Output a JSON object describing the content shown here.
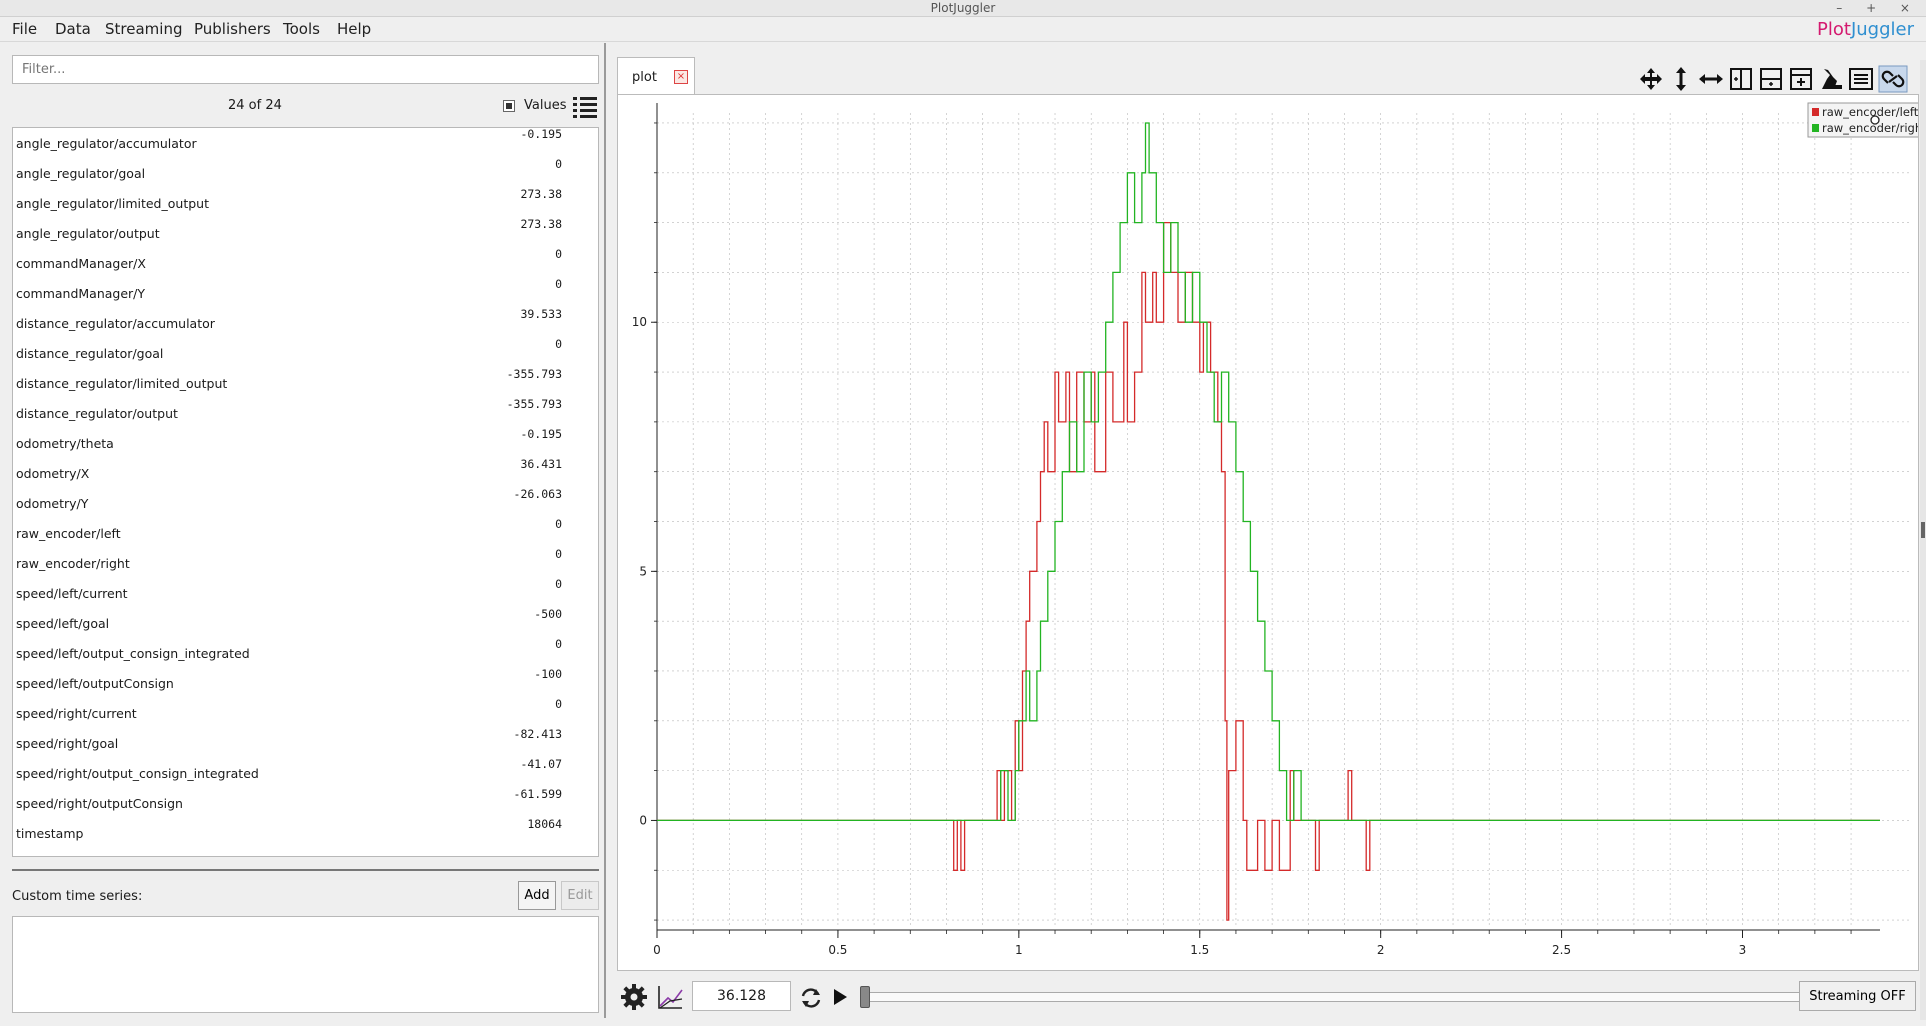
{
  "window": {
    "title": "PlotJuggler",
    "controls": "– + ×"
  },
  "menu": [
    "File",
    "Data",
    "Streaming",
    "Publishers",
    "Tools",
    "Help"
  ],
  "logo": {
    "part1": "Plot",
    "part2": "Juggler"
  },
  "left": {
    "filter_placeholder": "Filter...",
    "count": "24 of 24",
    "values_label": "Values",
    "values_checked": true,
    "items": [
      {
        "name": "angle_regulator/accumulator",
        "value": "-0.195"
      },
      {
        "name": "angle_regulator/goal",
        "value": "0"
      },
      {
        "name": "angle_regulator/limited_output",
        "value": "273.38"
      },
      {
        "name": "angle_regulator/output",
        "value": "273.38"
      },
      {
        "name": "commandManager/X",
        "value": "0"
      },
      {
        "name": "commandManager/Y",
        "value": "0"
      },
      {
        "name": "distance_regulator/accumulator",
        "value": "39.533"
      },
      {
        "name": "distance_regulator/goal",
        "value": "0"
      },
      {
        "name": "distance_regulator/limited_output",
        "value": "-355.793"
      },
      {
        "name": "distance_regulator/output",
        "value": "-355.793"
      },
      {
        "name": "odometry/theta",
        "value": "-0.195"
      },
      {
        "name": "odometry/X",
        "value": "36.431"
      },
      {
        "name": "odometry/Y",
        "value": "-26.063"
      },
      {
        "name": "raw_encoder/left",
        "value": "0"
      },
      {
        "name": "raw_encoder/right",
        "value": "0"
      },
      {
        "name": "speed/left/current",
        "value": "0"
      },
      {
        "name": "speed/left/goal",
        "value": "-500"
      },
      {
        "name": "speed/left/output_consign_integrated",
        "value": "0"
      },
      {
        "name": "speed/left/outputConsign",
        "value": "-100"
      },
      {
        "name": "speed/right/current",
        "value": "0"
      },
      {
        "name": "speed/right/goal",
        "value": "-82.413"
      },
      {
        "name": "speed/right/output_consign_integrated",
        "value": "-41.07"
      },
      {
        "name": "speed/right/outputConsign",
        "value": "-61.599"
      },
      {
        "name": "timestamp",
        "value": "18064"
      }
    ],
    "custom_label": "Custom time series:",
    "add_label": "Add",
    "edit_label": "Edit"
  },
  "plot_tab": {
    "label": "plot",
    "close": "×"
  },
  "toolbar_icons": [
    "move-icon",
    "vertical-zoom-icon",
    "horizontal-zoom-icon",
    "split-vertical-icon",
    "split-horizontal-icon",
    "add-plot-icon",
    "clear-icon",
    "legend-icon",
    "link-icon"
  ],
  "colors": {
    "left": "#d42a2a",
    "right": "#22b422",
    "logo_plot": "#d4196f",
    "logo_juggler": "#2f8fd0"
  },
  "chart_data": {
    "type": "line",
    "title": "",
    "xlabel": "",
    "ylabel": "",
    "xlim": [
      0,
      3.38
    ],
    "ylim": [
      -2.4,
      14.2
    ],
    "xticks": [
      0,
      0.5,
      1,
      1.5,
      2,
      2.5,
      3
    ],
    "yticks": [
      0,
      5,
      10
    ],
    "grid": true,
    "legend": "top-right",
    "series": [
      {
        "name": "raw_encoder/left",
        "color": "#d42a2a",
        "points": [
          [
            0,
            0
          ],
          [
            0.8,
            0
          ],
          [
            0.82,
            -1
          ],
          [
            0.83,
            0
          ],
          [
            0.84,
            -1
          ],
          [
            0.85,
            0
          ],
          [
            0.93,
            0
          ],
          [
            0.94,
            1
          ],
          [
            0.95,
            0
          ],
          [
            0.96,
            1
          ],
          [
            0.98,
            0
          ],
          [
            0.99,
            2
          ],
          [
            1.0,
            1
          ],
          [
            1.01,
            3
          ],
          [
            1.02,
            4
          ],
          [
            1.03,
            5
          ],
          [
            1.05,
            6
          ],
          [
            1.06,
            7
          ],
          [
            1.07,
            8
          ],
          [
            1.08,
            7
          ],
          [
            1.1,
            9
          ],
          [
            1.11,
            8
          ],
          [
            1.13,
            9
          ],
          [
            1.14,
            7
          ],
          [
            1.16,
            9
          ],
          [
            1.18,
            8
          ],
          [
            1.2,
            9
          ],
          [
            1.21,
            7
          ],
          [
            1.24,
            9
          ],
          [
            1.26,
            8
          ],
          [
            1.29,
            10
          ],
          [
            1.3,
            8
          ],
          [
            1.32,
            9
          ],
          [
            1.34,
            11
          ],
          [
            1.35,
            10
          ],
          [
            1.37,
            11
          ],
          [
            1.38,
            10
          ],
          [
            1.4,
            12
          ],
          [
            1.42,
            11
          ],
          [
            1.44,
            10
          ],
          [
            1.46,
            11
          ],
          [
            1.48,
            10
          ],
          [
            1.5,
            9
          ],
          [
            1.51,
            10
          ],
          [
            1.53,
            9
          ],
          [
            1.55,
            8
          ],
          [
            1.56,
            7
          ],
          [
            1.57,
            2
          ],
          [
            1.575,
            -2
          ],
          [
            1.58,
            1
          ],
          [
            1.6,
            2
          ],
          [
            1.62,
            0
          ],
          [
            1.63,
            -1
          ],
          [
            1.66,
            0
          ],
          [
            1.68,
            -1
          ],
          [
            1.7,
            0
          ],
          [
            1.72,
            -1
          ],
          [
            1.75,
            1
          ],
          [
            1.76,
            0
          ],
          [
            1.8,
            0
          ],
          [
            1.82,
            -1
          ],
          [
            1.83,
            0
          ],
          [
            1.9,
            0
          ],
          [
            1.91,
            1
          ],
          [
            1.92,
            0
          ],
          [
            1.95,
            0
          ],
          [
            1.96,
            -1
          ],
          [
            1.97,
            0
          ],
          [
            3.38,
            0
          ]
        ]
      },
      {
        "name": "raw_encoder/right",
        "color": "#22b422",
        "points": [
          [
            0,
            0
          ],
          [
            0.93,
            0
          ],
          [
            0.95,
            1
          ],
          [
            0.97,
            0
          ],
          [
            0.99,
            1
          ],
          [
            1.0,
            2
          ],
          [
            1.02,
            3
          ],
          [
            1.03,
            2
          ],
          [
            1.05,
            3
          ],
          [
            1.06,
            4
          ],
          [
            1.08,
            5
          ],
          [
            1.1,
            6
          ],
          [
            1.12,
            7
          ],
          [
            1.14,
            8
          ],
          [
            1.16,
            7
          ],
          [
            1.18,
            9
          ],
          [
            1.2,
            8
          ],
          [
            1.22,
            9
          ],
          [
            1.24,
            10
          ],
          [
            1.26,
            11
          ],
          [
            1.28,
            12
          ],
          [
            1.3,
            13
          ],
          [
            1.32,
            12
          ],
          [
            1.34,
            13
          ],
          [
            1.35,
            14
          ],
          [
            1.36,
            13
          ],
          [
            1.38,
            12
          ],
          [
            1.4,
            11
          ],
          [
            1.42,
            12
          ],
          [
            1.44,
            11
          ],
          [
            1.46,
            10
          ],
          [
            1.48,
            11
          ],
          [
            1.5,
            10
          ],
          [
            1.52,
            9
          ],
          [
            1.54,
            8
          ],
          [
            1.56,
            9
          ],
          [
            1.58,
            8
          ],
          [
            1.6,
            7
          ],
          [
            1.62,
            6
          ],
          [
            1.64,
            5
          ],
          [
            1.66,
            4
          ],
          [
            1.68,
            3
          ],
          [
            1.7,
            2
          ],
          [
            1.72,
            1
          ],
          [
            1.74,
            0
          ],
          [
            1.76,
            1
          ],
          [
            1.78,
            0
          ],
          [
            3.38,
            0
          ]
        ]
      }
    ]
  },
  "bottom": {
    "time_value": "36.128",
    "streaming_label": "Streaming OFF"
  }
}
